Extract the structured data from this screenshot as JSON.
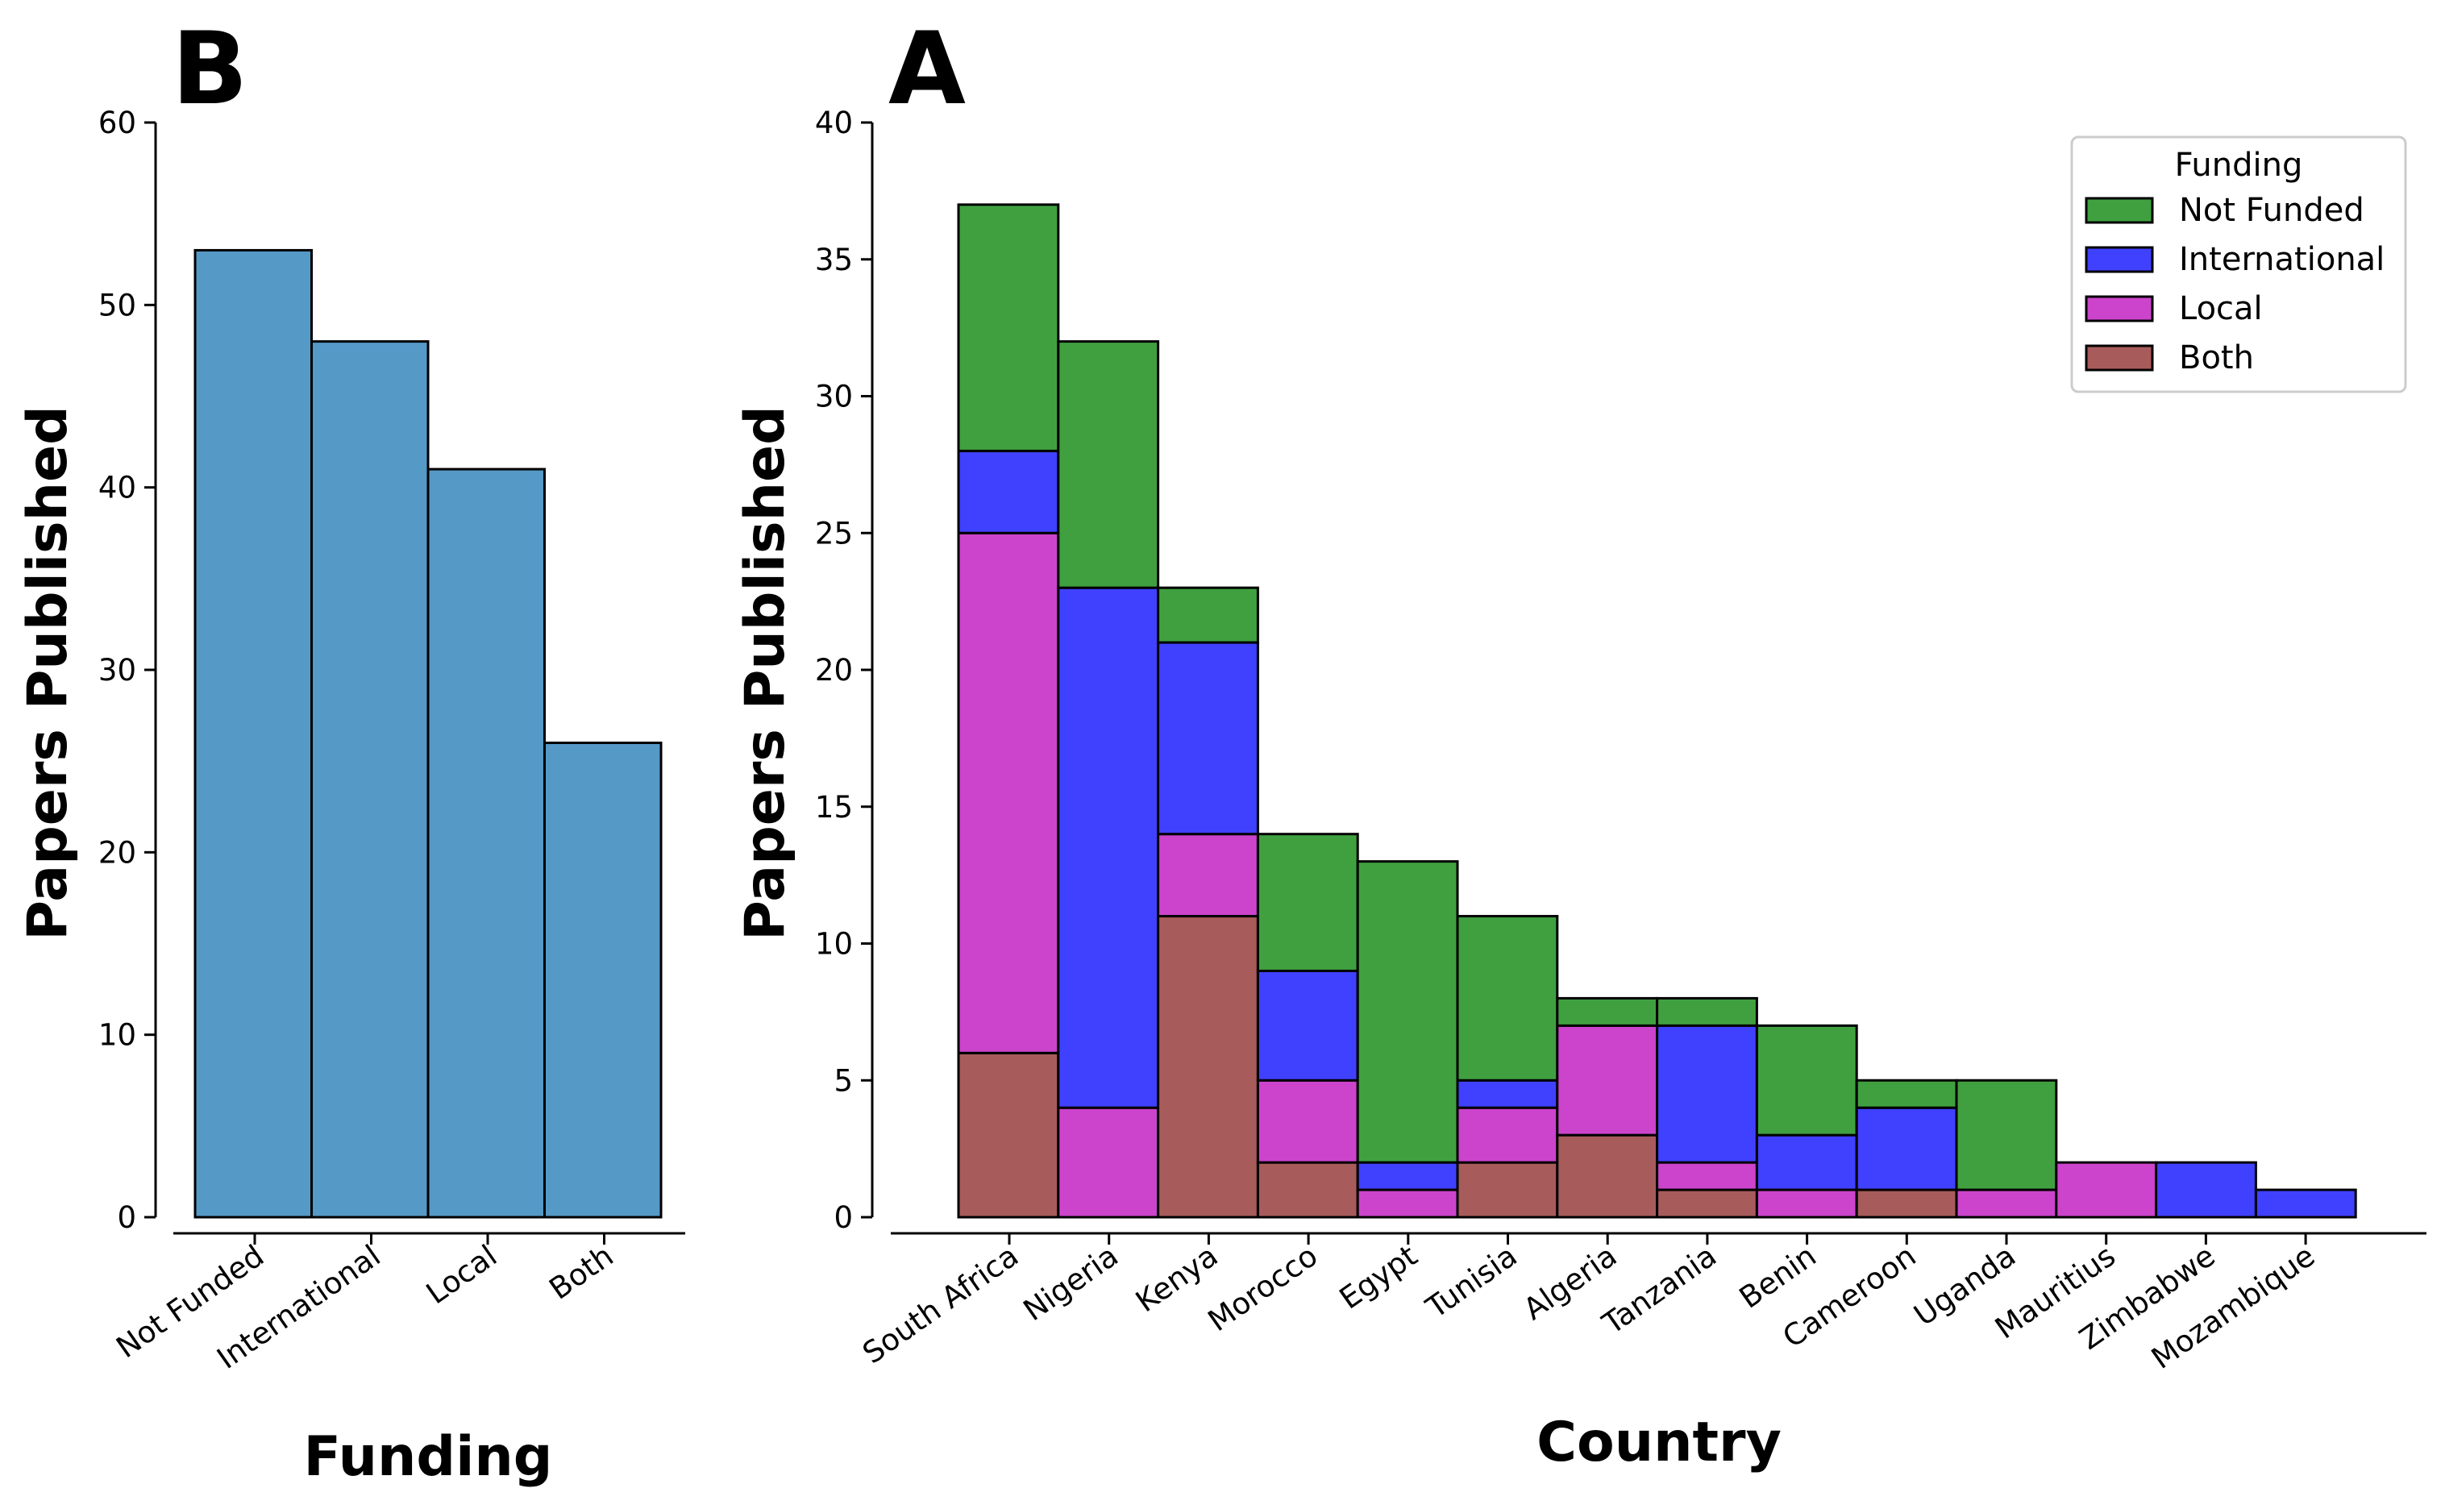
{
  "chart_data": [
    {
      "panel": "B",
      "type": "bar",
      "xlabel": "Funding",
      "ylabel": "Papers Published",
      "ylim": [
        0,
        60
      ],
      "yticks": [
        0,
        10,
        20,
        30,
        40,
        50,
        60
      ],
      "categories": [
        "Not Funded",
        "International",
        "Local",
        "Both"
      ],
      "values": [
        53,
        48,
        41,
        26
      ],
      "color": "#5599c7"
    },
    {
      "panel": "A",
      "type": "bar",
      "stacked": true,
      "xlabel": "Country",
      "ylabel": "Papers Published",
      "ylim": [
        0,
        40
      ],
      "yticks": [
        0,
        5,
        10,
        15,
        20,
        25,
        30,
        35,
        40
      ],
      "legend_title": "Funding",
      "legend_position": "top-right",
      "categories": [
        "South Africa",
        "Nigeria",
        "Kenya",
        "Morocco",
        "Egypt",
        "Tunisia",
        "Algeria",
        "Tanzania",
        "Benin",
        "Cameroon",
        "Uganda",
        "Mauritius",
        "Zimbabwe",
        "Mozambique"
      ],
      "series": [
        {
          "name": "Not Funded",
          "color": "#40a040",
          "values": [
            9,
            9,
            2,
            5,
            11,
            6,
            1,
            1,
            4,
            1,
            4,
            0,
            0,
            0
          ]
        },
        {
          "name": "International",
          "color": "#4040ff",
          "values": [
            3,
            19,
            7,
            4,
            1,
            1,
            0,
            5,
            2,
            3,
            0,
            0,
            2,
            1
          ]
        },
        {
          "name": "Local",
          "color": "#cc44cc",
          "values": [
            19,
            4,
            3,
            3,
            1,
            2,
            4,
            1,
            1,
            0,
            1,
            2,
            0,
            0
          ]
        },
        {
          "name": "Both",
          "color": "#a85b5b",
          "values": [
            6,
            0,
            11,
            2,
            0,
            2,
            3,
            1,
            0,
            1,
            0,
            0,
            0,
            0
          ]
        }
      ]
    }
  ]
}
